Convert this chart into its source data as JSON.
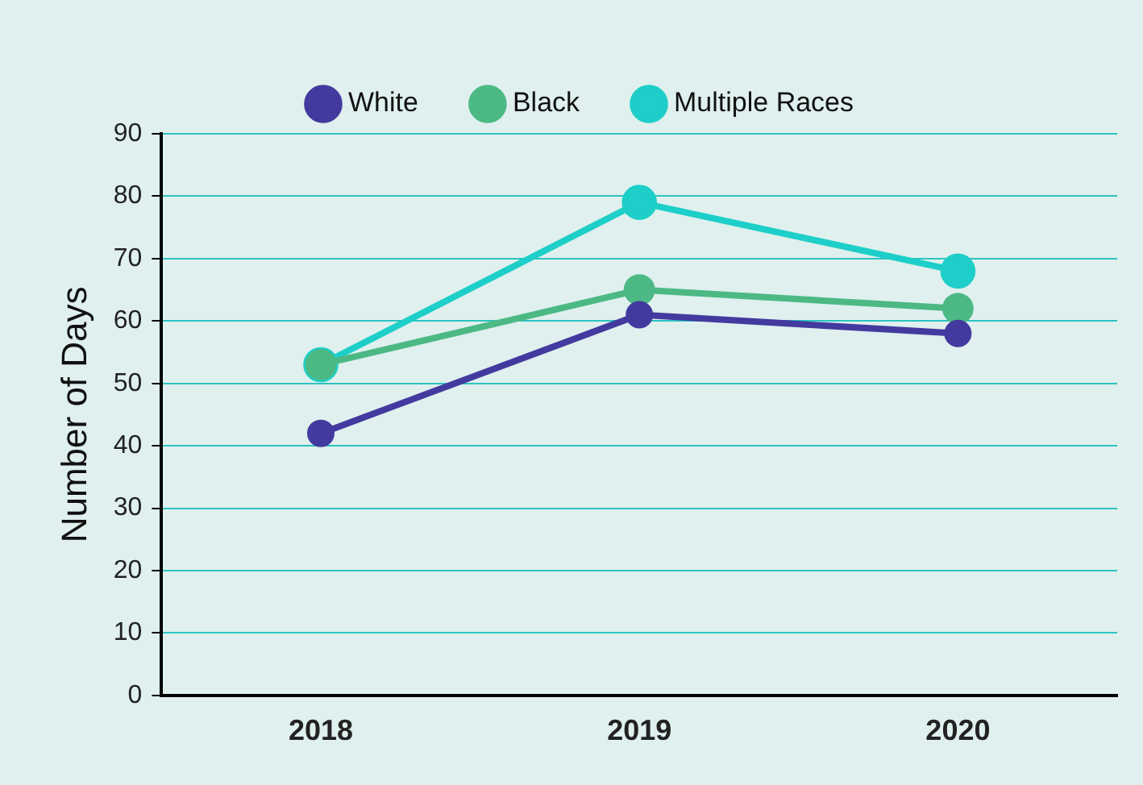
{
  "chart_data": {
    "type": "line",
    "ylabel": "Number of Days",
    "categories": [
      "2018",
      "2019",
      "2020"
    ],
    "series": [
      {
        "name": "White",
        "color": "#433a9f",
        "values": [
          42,
          61,
          58
        ]
      },
      {
        "name": "Black",
        "color": "#4cb985",
        "values": [
          53,
          65,
          62
        ]
      },
      {
        "name": "Multiple Races",
        "color": "#1dcfc8",
        "values": [
          53,
          79,
          68
        ]
      }
    ],
    "ylim": [
      0,
      90
    ],
    "yticks": [
      0,
      10,
      20,
      30,
      40,
      50,
      60,
      70,
      80,
      90
    ],
    "grid": "y",
    "legend": "top",
    "marker": "circle",
    "line_style": "solid"
  }
}
